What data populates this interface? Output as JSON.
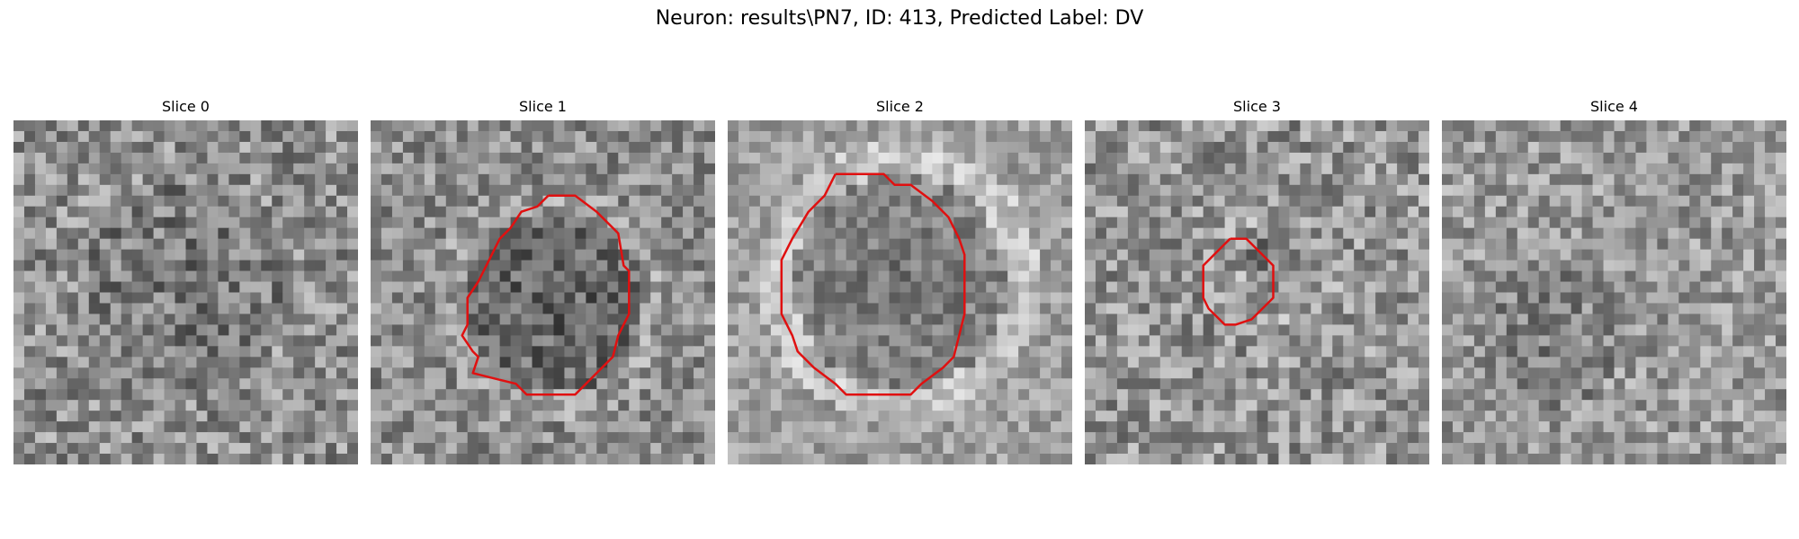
{
  "figure": {
    "title": "Neuron: results\\PN7, ID: 413, Predicted Label: DV",
    "contour_color": "#e01010",
    "grid_size": 32,
    "colormap": "gray"
  },
  "panels": [
    {
      "title": "Slice 0",
      "has_contour": false
    },
    {
      "title": "Slice 1",
      "has_contour": true
    },
    {
      "title": "Slice 2",
      "has_contour": true
    },
    {
      "title": "Slice 3",
      "has_contour": true
    },
    {
      "title": "Slice 4",
      "has_contour": false
    }
  ]
}
